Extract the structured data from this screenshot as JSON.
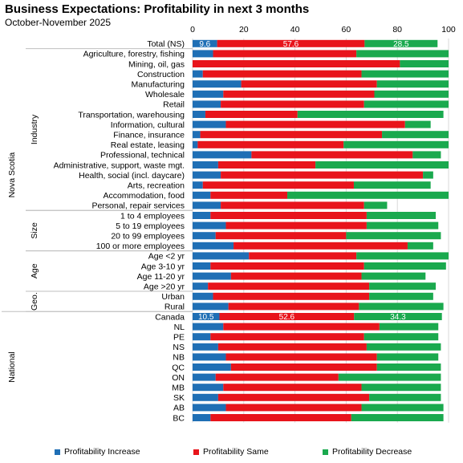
{
  "chart_data": {
    "type": "bar",
    "orientation": "horizontal",
    "stacked": true,
    "title": "Business Expectations: Profitability in next 3 months",
    "subtitle": "October-November 2025",
    "xlim": [
      0,
      100
    ],
    "xticks": [
      "0",
      "20",
      "40",
      "60",
      "80",
      "100"
    ],
    "grid": true,
    "legend_position": "bottom",
    "series": [
      {
        "name": "Profitability Increase",
        "color": "#1F6FB5"
      },
      {
        "name": "Profitability Same",
        "color": "#E8141B"
      },
      {
        "name": "Profitability Decrease",
        "color": "#1AA94E"
      }
    ],
    "rows": [
      {
        "label": "Total (NS)",
        "values": [
          9.6,
          57.6,
          28.5
        ],
        "labels": [
          "9.6",
          "57.6",
          "28.5"
        ]
      },
      {
        "label": "Agriculture, forestry, fishing",
        "values": [
          8,
          56,
          36
        ]
      },
      {
        "label": "Mining, oil, gas",
        "values": [
          0,
          81,
          19
        ]
      },
      {
        "label": "Construction",
        "values": [
          4,
          62,
          34
        ]
      },
      {
        "label": "Manufacturing",
        "values": [
          19,
          53,
          28
        ]
      },
      {
        "label": "Wholesale",
        "values": [
          12,
          59,
          29
        ]
      },
      {
        "label": "Retail",
        "values": [
          11,
          56,
          33
        ]
      },
      {
        "label": "Transportation, warehousing",
        "values": [
          5,
          36,
          57
        ]
      },
      {
        "label": "Information, cultural",
        "values": [
          13,
          70,
          10
        ]
      },
      {
        "label": "Finance, insurance",
        "values": [
          3,
          71,
          26
        ]
      },
      {
        "label": "Real estate, leasing",
        "values": [
          2,
          57,
          41
        ]
      },
      {
        "label": "Professional, technical",
        "values": [
          23,
          63,
          11
        ]
      },
      {
        "label": "Administrative, support, waste mgt.",
        "values": [
          10,
          38,
          52
        ]
      },
      {
        "label": "Health, social (incl. daycare)",
        "values": [
          11,
          79,
          4
        ]
      },
      {
        "label": "Arts, recreation",
        "values": [
          4,
          59,
          30
        ]
      },
      {
        "label": "Accommodation, food",
        "values": [
          7,
          30,
          63
        ]
      },
      {
        "label": "Personal, repair services",
        "values": [
          11,
          56,
          9
        ]
      },
      {
        "label": "1 to 4 employees",
        "values": [
          7,
          61,
          27
        ]
      },
      {
        "label": "5 to 19 employees",
        "values": [
          13,
          55,
          28
        ]
      },
      {
        "label": "20 to 99 employees",
        "values": [
          9,
          51,
          37
        ]
      },
      {
        "label": "100 or more employees",
        "values": [
          16,
          68,
          10
        ]
      },
      {
        "label": "Age <2 yr",
        "values": [
          22,
          42,
          36
        ]
      },
      {
        "label": "Age 3-10 yr",
        "values": [
          7,
          60,
          32
        ]
      },
      {
        "label": "Age 11-20 yr",
        "values": [
          15,
          51,
          25
        ]
      },
      {
        "label": "Age >20 yr",
        "values": [
          6,
          63,
          26
        ]
      },
      {
        "label": "Urban",
        "values": [
          8,
          61,
          25
        ]
      },
      {
        "label": "Rural",
        "values": [
          14,
          51,
          33
        ]
      },
      {
        "label": "Canada",
        "values": [
          10.5,
          52.6,
          34.3
        ],
        "labels": [
          "10.5",
          "52.6",
          "34.3"
        ]
      },
      {
        "label": "NL",
        "values": [
          12,
          61,
          23
        ]
      },
      {
        "label": "PE",
        "values": [
          7,
          60,
          29
        ]
      },
      {
        "label": "NS",
        "values": [
          10,
          58,
          29
        ]
      },
      {
        "label": "NB",
        "values": [
          13,
          59,
          24
        ]
      },
      {
        "label": "QC",
        "values": [
          15,
          57,
          25
        ]
      },
      {
        "label": "ON",
        "values": [
          9,
          48,
          40
        ]
      },
      {
        "label": "MB",
        "values": [
          12,
          54,
          31
        ]
      },
      {
        "label": "SK",
        "values": [
          10,
          59,
          28
        ]
      },
      {
        "label": "AB",
        "values": [
          13,
          53,
          32
        ]
      },
      {
        "label": "BC",
        "values": [
          7,
          55,
          36
        ]
      }
    ],
    "groups": [
      {
        "label": "Nova Scotia",
        "from": 0,
        "to": 26
      },
      {
        "label": "National",
        "from": 27,
        "to": 37
      }
    ],
    "subgroups": [
      {
        "label": "Industry",
        "from": 1,
        "to": 16
      },
      {
        "label": "Size",
        "from": 17,
        "to": 20
      },
      {
        "label": "Age",
        "from": 21,
        "to": 24
      },
      {
        "label": "Geo.",
        "from": 25,
        "to": 26
      }
    ]
  }
}
